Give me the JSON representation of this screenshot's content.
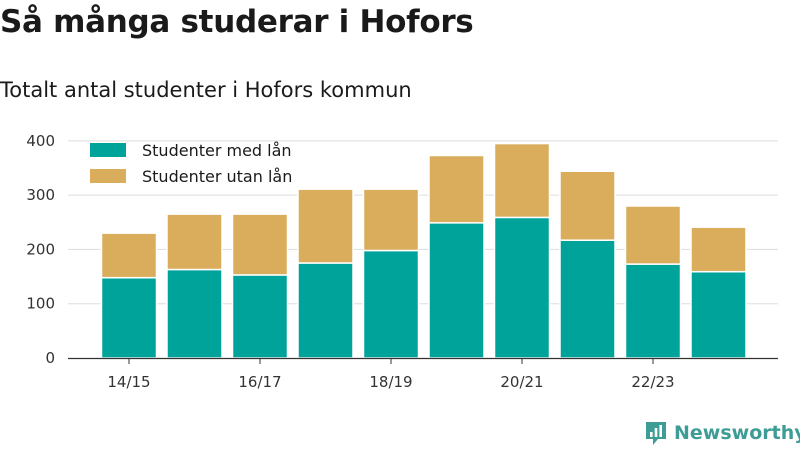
{
  "header": {
    "title": "Så många studerar i Hofors",
    "subtitle": "Totalt antal studenter i Hofors kommun"
  },
  "brand": {
    "name": "Newsworthy",
    "icon": "bar-chart-logo-icon",
    "color": "#3d9c95"
  },
  "colors": {
    "series_loan": "#00a39a",
    "series_no_loan": "#d9ad5b",
    "grid": "#dddddd",
    "axis": "#333333"
  },
  "chart_data": {
    "type": "bar",
    "stacked": true,
    "title": "Totalt antal studenter i Hofors kommun",
    "xlabel": "",
    "ylabel": "",
    "categories": [
      "14/15",
      "15/16",
      "16/17",
      "17/18",
      "18/19",
      "19/20",
      "20/21",
      "21/22",
      "22/23",
      "23/24"
    ],
    "x_tick_labels": [
      "14/15",
      "",
      "16/17",
      "",
      "18/19",
      "",
      "20/21",
      "",
      "22/23",
      ""
    ],
    "y_ticks": [
      0,
      100,
      200,
      300,
      400
    ],
    "ylim": [
      0,
      420
    ],
    "grid": true,
    "legend_position": "top-left",
    "series": [
      {
        "name": "Studenter med lån",
        "color": "#00a39a",
        "values": [
          148,
          163,
          153,
          175,
          198,
          249,
          259,
          217,
          173,
          159
        ]
      },
      {
        "name": "Studenter utan lån",
        "color": "#d9ad5b",
        "values": [
          82,
          102,
          112,
          136,
          113,
          124,
          136,
          127,
          107,
          82
        ]
      }
    ]
  }
}
